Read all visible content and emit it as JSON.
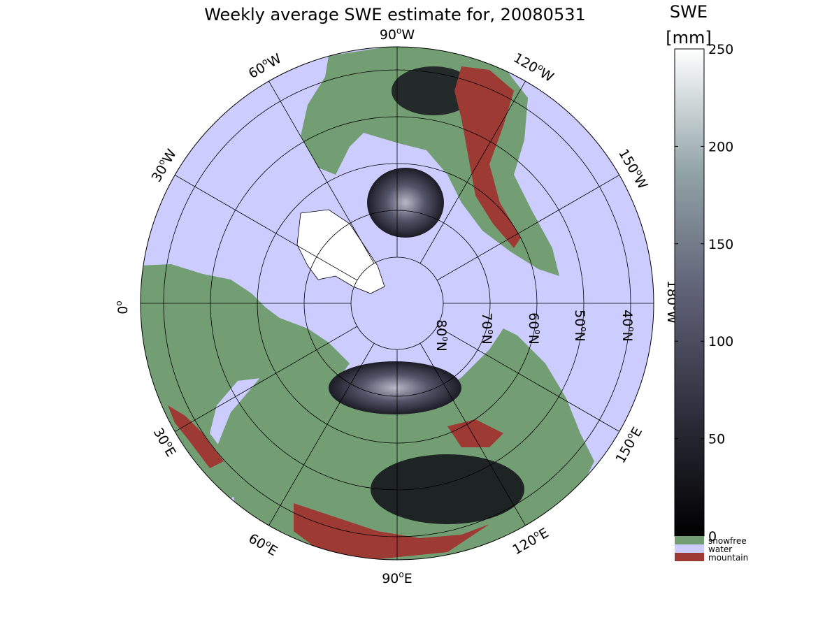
{
  "title": "Weekly average SWE estimate for, 20080531",
  "colorbar": {
    "label_line1": "SWE",
    "label_line2": "[mm]",
    "ticks": [
      "0",
      "50",
      "100",
      "150",
      "200",
      "250"
    ],
    "range": [
      0,
      250
    ],
    "categories": [
      {
        "label": "snowfree",
        "color": "#739e73"
      },
      {
        "label": "water",
        "color": "#ccccff"
      },
      {
        "label": "mountain",
        "color": "#9e3a34"
      }
    ]
  },
  "longitude_labels": {
    "lon_90w": "90",
    "lon_60w": "60",
    "lon_120w": "120",
    "lon_30w": "30",
    "lon_150w": "150",
    "lon_0": "0",
    "lon_180w": "180",
    "lon_30e": "30",
    "lon_150e": "150",
    "lon_60e": "60",
    "lon_120e": "120",
    "lon_90e": "90"
  },
  "hemisphere_suffix": {
    "w": "W",
    "e": "E",
    "n": "N"
  },
  "degree_symbol": "o",
  "latitude_labels": {
    "lat_80": "80",
    "lat_70": "70",
    "lat_60": "60",
    "lat_50": "50",
    "lat_40": "40"
  },
  "colors": {
    "water": "#ccccff",
    "snowfree": "#739e73",
    "mountain": "#9e3a34",
    "snow_dark": "#1a1a24",
    "snow_mid": "#5a5a70"
  }
}
